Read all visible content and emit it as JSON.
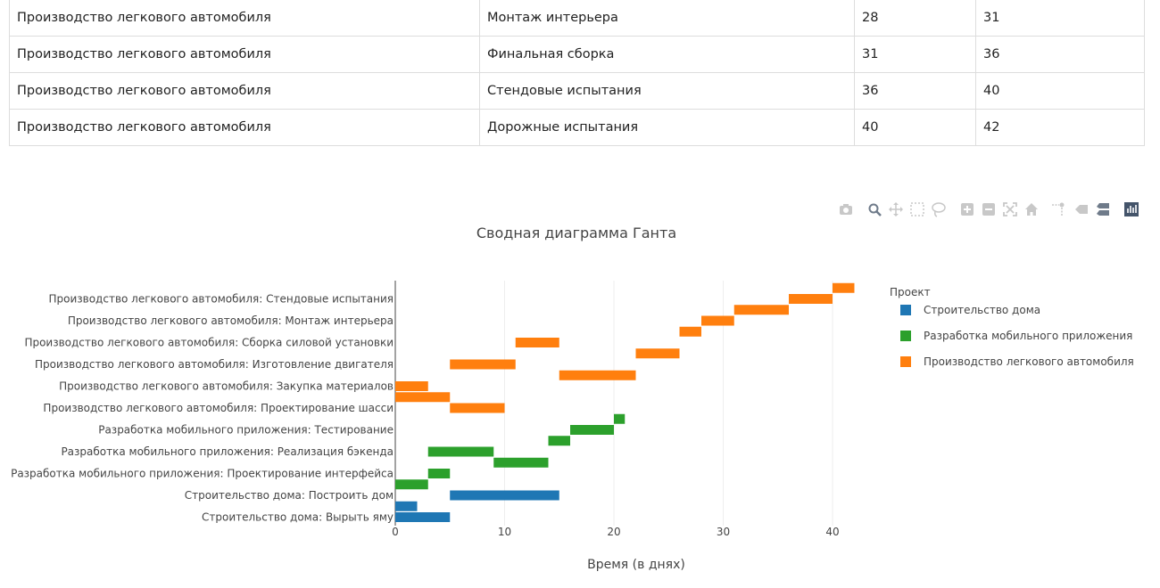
{
  "table": {
    "rows": [
      [
        "Производство легкового автомобиля",
        "Монтаж интерьера",
        "28",
        "31"
      ],
      [
        "Производство легкового автомобиля",
        "Финальная сборка",
        "31",
        "36"
      ],
      [
        "Производство легкового автомобиля",
        "Стендовые испытания",
        "36",
        "40"
      ],
      [
        "Производство легкового автомобиля",
        "Дорожные испытания",
        "40",
        "42"
      ]
    ]
  },
  "toolbar": {
    "icons": [
      "camera-icon",
      "zoom-icon",
      "pan-icon",
      "box-select-icon",
      "lasso-select-icon",
      "zoom-in-icon",
      "zoom-out-icon",
      "autoscale-icon",
      "reset-axes-icon",
      "spike-lines-icon",
      "hover-closest-icon",
      "hover-compare-icon",
      "plotly-logo-icon"
    ]
  },
  "chart_data": {
    "type": "bar",
    "orientation": "horizontal",
    "title": "Сводная диаграмма Ганта",
    "xlabel": "Время (в днях)",
    "ylabel": "",
    "xlim": [
      0,
      43
    ],
    "xticks": [
      0,
      10,
      20,
      30,
      40
    ],
    "grid": true,
    "legend_title": "Проект",
    "legend_position": "right",
    "y_tick_labels": [
      "Строительство дома: Вырыть яму",
      "Строительство дома: Построить дом",
      "Разработка мобильного приложения: Проектирование интерфейса",
      "Разработка мобильного приложения: Реализация бэкенда",
      "Разработка мобильного приложения: Тестирование",
      "Производство легкового автомобиля: Проектирование шасси",
      "Производство легкового автомобиля: Закупка материалов",
      "Производство легкового автомобиля: Изготовление двигателя",
      "Производство легкового автомобиля: Сборка силовой установки",
      "Производство легкового автомобиля: Монтаж интерьера",
      "Производство легкового автомобиля: Стендовые испытания"
    ],
    "series": [
      {
        "name": "Строительство дома",
        "color": "#1f77b4",
        "bars": [
          {
            "row": 0,
            "start": 0,
            "end": 5
          },
          {
            "row": 0.5,
            "start": 0,
            "end": 2
          },
          {
            "row": 1,
            "start": 5,
            "end": 15
          }
        ]
      },
      {
        "name": "Разработка мобильного приложения",
        "color": "#2ca02c",
        "bars": [
          {
            "row": 1.5,
            "start": 0,
            "end": 3
          },
          {
            "row": 2,
            "start": 3,
            "end": 5
          },
          {
            "row": 2.5,
            "start": 9,
            "end": 14
          },
          {
            "row": 3,
            "start": 3,
            "end": 9
          },
          {
            "row": 3.5,
            "start": 14,
            "end": 16
          },
          {
            "row": 4,
            "start": 16,
            "end": 20
          },
          {
            "row": 4.5,
            "start": 20,
            "end": 21
          }
        ]
      },
      {
        "name": "Производство легкового автомобиля",
        "color": "#ff7f0e",
        "bars": [
          {
            "row": 5,
            "start": 5,
            "end": 10
          },
          {
            "row": 5.5,
            "start": 0,
            "end": 5
          },
          {
            "row": 6,
            "start": 0,
            "end": 3
          },
          {
            "row": 6.5,
            "start": 15,
            "end": 22
          },
          {
            "row": 7,
            "start": 5,
            "end": 11
          },
          {
            "row": 7.5,
            "start": 22,
            "end": 26
          },
          {
            "row": 8,
            "start": 11,
            "end": 15
          },
          {
            "row": 8.5,
            "start": 26,
            "end": 28
          },
          {
            "row": 9,
            "start": 28,
            "end": 31
          },
          {
            "row": 9.5,
            "start": 31,
            "end": 36
          },
          {
            "row": 10,
            "start": 36,
            "end": 40
          },
          {
            "row": 10.5,
            "start": 40,
            "end": 42
          }
        ]
      }
    ]
  }
}
